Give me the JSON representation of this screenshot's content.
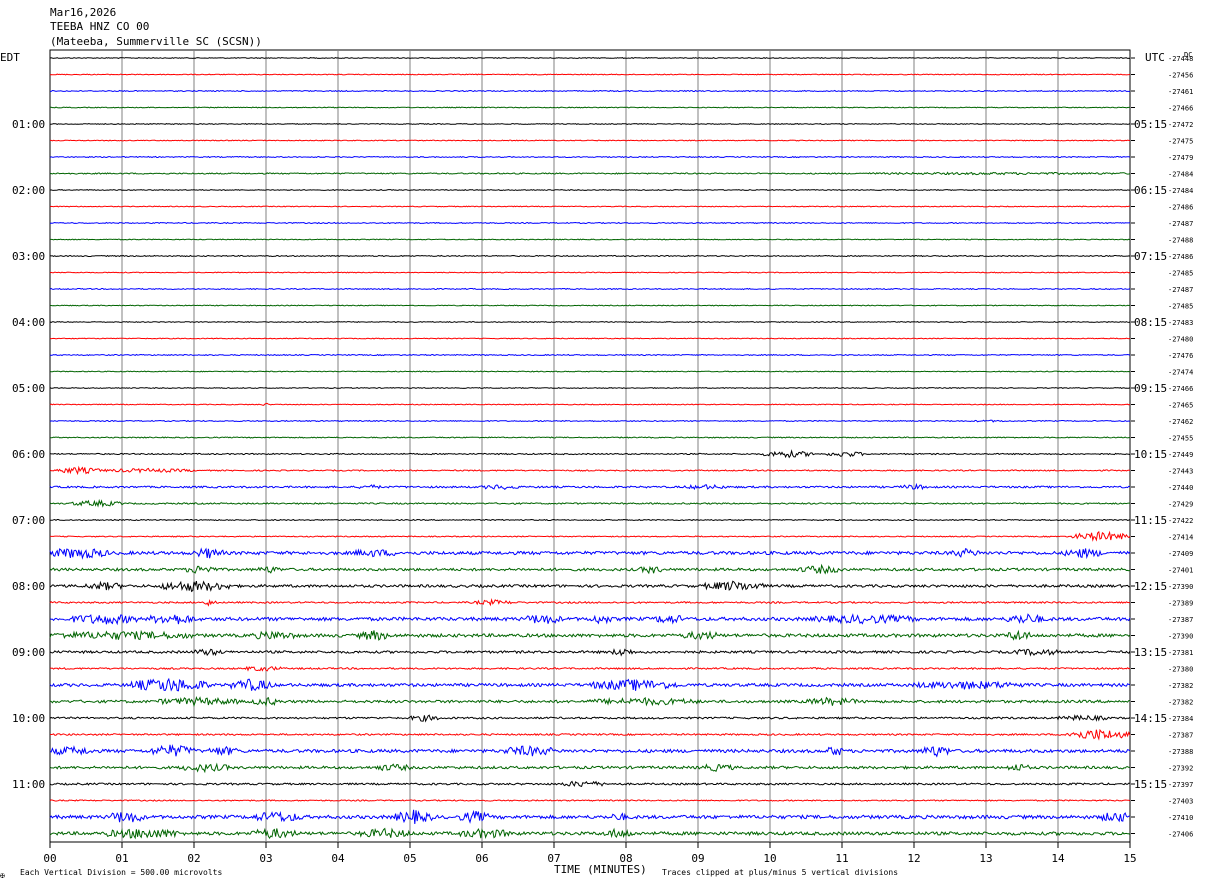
{
  "header": {
    "date": "Mar16,2026",
    "station": "TEEBA HNZ CO 00",
    "location": "(Mateeba, Summerville SC (SCSN))"
  },
  "left_tz": "EDT",
  "right_tz": "UTC",
  "dc_label": "DC",
  "footer": {
    "xlabel": "TIME (MINUTES)",
    "scale_note": "Each Vertical Division =  500.00 microvolts",
    "clip_note": "Traces clipped at plus/minus 5 vertical divisions",
    "corner_mark": "✠"
  },
  "colors": {
    "trace_cycle": [
      "#000000",
      "#ff0000",
      "#0000ff",
      "#006400"
    ],
    "grid": "#808080"
  },
  "chart_data": {
    "type": "line",
    "title": "",
    "xlabel": "TIME (MINUTES)",
    "ylabel": "",
    "x_range": [
      0,
      15
    ],
    "x_ticks": [
      "00",
      "01",
      "02",
      "03",
      "04",
      "05",
      "06",
      "07",
      "08",
      "09",
      "10",
      "11",
      "12",
      "13",
      "14",
      "15"
    ],
    "traces_per_hour": 4,
    "trace_minutes": 15,
    "left_hour_labels": [
      "01:00",
      "02:00",
      "03:00",
      "04:00",
      "05:00",
      "06:00",
      "07:00",
      "08:00",
      "09:00",
      "10:00",
      "11:00"
    ],
    "right_hour_labels": [
      "05:15",
      "06:15",
      "07:15",
      "08:15",
      "09:15",
      "10:15",
      "11:15",
      "12:15",
      "13:15",
      "14:15",
      "15:15"
    ],
    "dc_offsets": [
      -27448,
      -27456,
      -27461,
      -27466,
      -27472,
      -27475,
      -27479,
      -27484,
      -27484,
      -27486,
      -27487,
      -27488,
      -27486,
      -27485,
      -27487,
      -27485,
      -27483,
      -27480,
      -27476,
      -27474,
      -27466,
      -27465,
      -27462,
      -27455,
      -27449,
      -27443,
      -27440,
      -27429,
      -27422,
      -27414,
      -27409,
      -27401,
      -27390,
      -27389,
      -27387,
      -27390,
      -27381,
      -27380,
      -27382,
      -27382,
      -27384,
      -27387,
      -27388,
      -27392,
      -27397,
      -27403,
      -27410,
      -27406
    ],
    "noise_level": [
      0.4,
      0.4,
      0.5,
      0.4,
      0.4,
      0.4,
      0.5,
      0.6,
      0.4,
      0.4,
      0.5,
      0.4,
      0.5,
      0.4,
      0.5,
      0.4,
      0.4,
      0.4,
      0.5,
      0.4,
      0.4,
      0.4,
      0.5,
      0.5,
      0.6,
      0.6,
      0.9,
      0.7,
      0.5,
      0.5,
      1.6,
      1.3,
      1.3,
      0.8,
      1.7,
      1.6,
      1.2,
      0.8,
      1.5,
      1.3,
      0.9,
      0.8,
      1.6,
      1.3,
      0.9,
      0.6,
      1.7,
      1.6
    ],
    "events": [
      {
        "trace": 7,
        "start": 11.2,
        "end": 15.0,
        "amp": 0.6
      },
      {
        "trace": 21,
        "start": 2.95,
        "end": 3.05,
        "amp": 1.2
      },
      {
        "trace": 22,
        "start": 12.8,
        "end": 13.3,
        "amp": 0.5
      },
      {
        "trace": 24,
        "start": 9.9,
        "end": 10.6,
        "amp": 3.0
      },
      {
        "trace": 24,
        "start": 10.8,
        "end": 11.3,
        "amp": 2.5
      },
      {
        "trace": 25,
        "start": 0.1,
        "end": 0.7,
        "amp": 3.0
      },
      {
        "trace": 25,
        "start": 0.7,
        "end": 2.0,
        "amp": 1.5
      },
      {
        "trace": 26,
        "start": 4.3,
        "end": 4.6,
        "amp": 1.5
      },
      {
        "trace": 26,
        "start": 6.0,
        "end": 6.5,
        "amp": 1.8
      },
      {
        "trace": 26,
        "start": 8.8,
        "end": 9.4,
        "amp": 1.6
      },
      {
        "trace": 26,
        "start": 11.8,
        "end": 12.2,
        "amp": 1.8
      },
      {
        "trace": 27,
        "start": 0.3,
        "end": 1.0,
        "amp": 2.5
      },
      {
        "trace": 29,
        "start": 14.2,
        "end": 15.0,
        "amp": 4.5
      },
      {
        "trace": 30,
        "start": 0.0,
        "end": 0.8,
        "amp": 4.5
      },
      {
        "trace": 30,
        "start": 2.0,
        "end": 2.4,
        "amp": 4.0
      },
      {
        "trace": 30,
        "start": 4.2,
        "end": 4.8,
        "amp": 2.5
      },
      {
        "trace": 30,
        "start": 12.5,
        "end": 12.9,
        "amp": 3.0
      },
      {
        "trace": 30,
        "start": 14.1,
        "end": 14.6,
        "amp": 3.5
      },
      {
        "trace": 31,
        "start": 1.9,
        "end": 2.3,
        "amp": 3.5
      },
      {
        "trace": 31,
        "start": 2.9,
        "end": 3.2,
        "amp": 2.5
      },
      {
        "trace": 31,
        "start": 8.2,
        "end": 8.5,
        "amp": 3.0
      },
      {
        "trace": 31,
        "start": 10.4,
        "end": 11.0,
        "amp": 3.0
      },
      {
        "trace": 32,
        "start": 0.5,
        "end": 1.0,
        "amp": 3.0
      },
      {
        "trace": 32,
        "start": 1.5,
        "end": 2.5,
        "amp": 4.5
      },
      {
        "trace": 32,
        "start": 9.1,
        "end": 9.9,
        "amp": 4.0
      },
      {
        "trace": 33,
        "start": 2.1,
        "end": 2.3,
        "amp": 2.5
      },
      {
        "trace": 33,
        "start": 5.9,
        "end": 6.4,
        "amp": 2.0
      },
      {
        "trace": 34,
        "start": 0.3,
        "end": 1.2,
        "amp": 4.0
      },
      {
        "trace": 34,
        "start": 1.4,
        "end": 2.0,
        "amp": 4.5
      },
      {
        "trace": 34,
        "start": 6.6,
        "end": 7.1,
        "amp": 4.0
      },
      {
        "trace": 34,
        "start": 7.5,
        "end": 7.8,
        "amp": 3.5
      },
      {
        "trace": 34,
        "start": 8.4,
        "end": 8.8,
        "amp": 3.5
      },
      {
        "trace": 34,
        "start": 10.6,
        "end": 12.0,
        "amp": 3.0
      },
      {
        "trace": 34,
        "start": 13.3,
        "end": 13.8,
        "amp": 4.0
      },
      {
        "trace": 35,
        "start": 0.0,
        "end": 2.0,
        "amp": 3.0
      },
      {
        "trace": 35,
        "start": 2.8,
        "end": 3.4,
        "amp": 3.0
      },
      {
        "trace": 35,
        "start": 4.3,
        "end": 4.7,
        "amp": 4.0
      },
      {
        "trace": 35,
        "start": 8.8,
        "end": 9.3,
        "amp": 3.0
      },
      {
        "trace": 35,
        "start": 13.3,
        "end": 13.6,
        "amp": 4.5
      },
      {
        "trace": 36,
        "start": 2.0,
        "end": 2.4,
        "amp": 2.5
      },
      {
        "trace": 36,
        "start": 7.8,
        "end": 8.1,
        "amp": 3.0
      },
      {
        "trace": 36,
        "start": 13.4,
        "end": 14.0,
        "amp": 2.5
      },
      {
        "trace": 37,
        "start": 2.7,
        "end": 3.2,
        "amp": 2.0
      },
      {
        "trace": 38,
        "start": 1.1,
        "end": 2.2,
        "amp": 6.0
      },
      {
        "trace": 38,
        "start": 2.5,
        "end": 3.1,
        "amp": 5.0
      },
      {
        "trace": 38,
        "start": 7.5,
        "end": 8.7,
        "amp": 4.5
      },
      {
        "trace": 38,
        "start": 12.0,
        "end": 13.5,
        "amp": 3.0
      },
      {
        "trace": 39,
        "start": 1.5,
        "end": 2.6,
        "amp": 3.0
      },
      {
        "trace": 39,
        "start": 2.8,
        "end": 3.2,
        "amp": 3.0
      },
      {
        "trace": 39,
        "start": 7.5,
        "end": 9.0,
        "amp": 2.5
      },
      {
        "trace": 39,
        "start": 10.5,
        "end": 11.2,
        "amp": 3.0
      },
      {
        "trace": 40,
        "start": 5.0,
        "end": 5.4,
        "amp": 2.5
      },
      {
        "trace": 40,
        "start": 14.0,
        "end": 14.7,
        "amp": 2.0
      },
      {
        "trace": 41,
        "start": 14.1,
        "end": 15.0,
        "amp": 5.0
      },
      {
        "trace": 42,
        "start": 0.0,
        "end": 0.6,
        "amp": 3.0
      },
      {
        "trace": 42,
        "start": 1.4,
        "end": 2.0,
        "amp": 5.0
      },
      {
        "trace": 42,
        "start": 2.2,
        "end": 2.6,
        "amp": 3.5
      },
      {
        "trace": 42,
        "start": 6.3,
        "end": 7.0,
        "amp": 4.0
      },
      {
        "trace": 42,
        "start": 10.8,
        "end": 11.0,
        "amp": 4.5
      },
      {
        "trace": 42,
        "start": 12.1,
        "end": 12.5,
        "amp": 4.5
      },
      {
        "trace": 43,
        "start": 1.8,
        "end": 2.5,
        "amp": 3.0
      },
      {
        "trace": 43,
        "start": 4.5,
        "end": 5.0,
        "amp": 2.5
      },
      {
        "trace": 43,
        "start": 9.0,
        "end": 9.5,
        "amp": 2.5
      },
      {
        "trace": 43,
        "start": 13.3,
        "end": 13.6,
        "amp": 3.0
      },
      {
        "trace": 44,
        "start": 7.1,
        "end": 7.7,
        "amp": 2.5
      },
      {
        "trace": 46,
        "start": 0.8,
        "end": 1.3,
        "amp": 5.0
      },
      {
        "trace": 46,
        "start": 2.8,
        "end": 3.5,
        "amp": 4.0
      },
      {
        "trace": 46,
        "start": 4.8,
        "end": 5.3,
        "amp": 5.5
      },
      {
        "trace": 46,
        "start": 5.7,
        "end": 6.1,
        "amp": 4.5
      },
      {
        "trace": 46,
        "start": 7.8,
        "end": 8.0,
        "amp": 3.0
      },
      {
        "trace": 46,
        "start": 14.6,
        "end": 15.0,
        "amp": 4.0
      },
      {
        "trace": 47,
        "start": 0.8,
        "end": 1.8,
        "amp": 4.0
      },
      {
        "trace": 47,
        "start": 2.8,
        "end": 3.4,
        "amp": 4.0
      },
      {
        "trace": 47,
        "start": 4.3,
        "end": 5.0,
        "amp": 3.5
      },
      {
        "trace": 47,
        "start": 5.7,
        "end": 6.4,
        "amp": 3.5
      },
      {
        "trace": 47,
        "start": 7.7,
        "end": 8.1,
        "amp": 3.5
      }
    ]
  }
}
